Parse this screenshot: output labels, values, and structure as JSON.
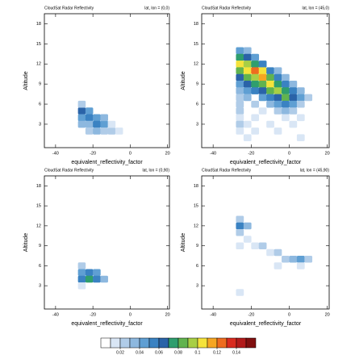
{
  "chart_data": [
    {
      "type": "heatmap",
      "title": "CloudSat Radar Reflectivity",
      "subtitle": "lat, lon = (0,0)",
      "xlabel": "equivalent_reflectivity_factor",
      "ylabel": "Altitude",
      "xlim": [
        -46,
        21
      ],
      "ylim": [
        -0.5,
        19.5
      ],
      "xticks": [
        -40,
        -20,
        0,
        20
      ],
      "yticks": [
        3,
        6,
        9,
        12,
        15,
        18
      ],
      "x": [
        -26,
        -26,
        -26,
        -26,
        -22,
        -22,
        -22,
        -22,
        -18,
        -18,
        -18,
        -14,
        -14,
        -14,
        -10,
        -10,
        -6
      ],
      "y": [
        5,
        4,
        3,
        6,
        5,
        4,
        3,
        2,
        4,
        3,
        2,
        3,
        4,
        2,
        2,
        3,
        2
      ],
      "values": [
        0.06,
        0.04,
        0.03,
        0.02,
        0.04,
        0.05,
        0.03,
        0.02,
        0.04,
        0.05,
        0.03,
        0.04,
        0.03,
        0.02,
        0.02,
        0.015,
        0.015
      ]
    },
    {
      "type": "heatmap",
      "title": "CloudSat Radar Reflectivity",
      "subtitle": "lat, lon = (45,0)",
      "xlabel": "equivalent_reflectivity_factor",
      "ylabel": "Altitude",
      "xlim": [
        -46,
        21
      ],
      "ylim": [
        -0.5,
        19.5
      ],
      "xticks": [
        -40,
        -20,
        0,
        20
      ],
      "yticks": [
        3,
        6,
        9,
        12,
        15,
        18
      ],
      "x": [
        -26,
        -22,
        -26,
        -22,
        -18,
        -26,
        -22,
        -18,
        -14,
        -26,
        -22,
        -18,
        -14,
        -10,
        -6,
        -26,
        -22,
        -18,
        -14,
        -10,
        -6,
        -2,
        -26,
        -22,
        -18,
        -14,
        -10,
        -6,
        -2,
        2,
        -26,
        -22,
        -18,
        -14,
        -10,
        -6,
        -2,
        2,
        6,
        -26,
        -22,
        -14,
        -10,
        -6,
        -2,
        2,
        6,
        10,
        -26,
        -18,
        -10,
        -6,
        -2,
        2,
        6,
        -26,
        -14,
        -6,
        -2,
        2,
        -26,
        -18,
        -2,
        6,
        -26,
        -22,
        -10,
        2,
        -26,
        -18,
        -6,
        -22,
        6
      ],
      "y": [
        14,
        14,
        13,
        13,
        13,
        12,
        12,
        12,
        12,
        11,
        11,
        11,
        11,
        11,
        11,
        10,
        10,
        10,
        10,
        10,
        10,
        10,
        9,
        9,
        9,
        9,
        9,
        9,
        9,
        9,
        8,
        8,
        8,
        8,
        8,
        8,
        8,
        8,
        8,
        7,
        7,
        7,
        7,
        7,
        7,
        7,
        7,
        7,
        6,
        6,
        6,
        6,
        6,
        6,
        6,
        5,
        5,
        5,
        5,
        5,
        4,
        4,
        4,
        4,
        3,
        3,
        3,
        3,
        2,
        2,
        2,
        1,
        1
      ],
      "values": [
        0.04,
        0.03,
        0.07,
        0.06,
        0.04,
        0.1,
        0.09,
        0.07,
        0.05,
        0.08,
        0.1,
        0.12,
        0.1,
        0.05,
        0.03,
        0.06,
        0.08,
        0.09,
        0.11,
        0.08,
        0.05,
        0.03,
        0.04,
        0.06,
        0.07,
        0.08,
        0.1,
        0.07,
        0.05,
        0.03,
        0.03,
        0.04,
        0.05,
        0.06,
        0.08,
        0.09,
        0.07,
        0.05,
        0.03,
        0.02,
        0.03,
        0.04,
        0.05,
        0.06,
        0.08,
        0.06,
        0.04,
        0.02,
        0.02,
        0.02,
        0.03,
        0.04,
        0.05,
        0.04,
        0.02,
        0.02,
        0.015,
        0.02,
        0.03,
        0.02,
        0.015,
        0.015,
        0.015,
        0.015,
        0.02,
        0.015,
        0.015,
        0.015,
        0.015,
        0.015,
        0.015,
        0.015,
        0.015
      ]
    },
    {
      "type": "heatmap",
      "title": "CloudSat Radar Reflectivity",
      "subtitle": "lat, lon = (0,90)",
      "xlabel": "equivalent_reflectivity_factor",
      "ylabel": "Altitude",
      "xlim": [
        -46,
        21
      ],
      "ylim": [
        -0.5,
        19.5
      ],
      "xticks": [
        -40,
        -20,
        0,
        20
      ],
      "yticks": [
        3,
        6,
        9,
        12,
        15,
        18
      ],
      "x": [
        -26,
        -26,
        -26,
        -22,
        -22,
        -18,
        -18,
        -14,
        -26
      ],
      "y": [
        6,
        5,
        4,
        5,
        4,
        5,
        4,
        4,
        3
      ],
      "values": [
        0.02,
        0.04,
        0.05,
        0.05,
        0.07,
        0.04,
        0.05,
        0.03,
        0.015
      ]
    },
    {
      "type": "heatmap",
      "title": "CloudSat Radar Reflectivity",
      "subtitle": "lat, lon = (45,90)",
      "xlabel": "equivalent_reflectivity_factor",
      "ylabel": "Altitude",
      "xlim": [
        -46,
        21
      ],
      "ylim": [
        -0.5,
        19.5
      ],
      "xticks": [
        -40,
        -20,
        0,
        20
      ],
      "yticks": [
        3,
        6,
        9,
        12,
        15,
        18
      ],
      "x": [
        -26,
        -26,
        -22,
        -26,
        -22,
        -18,
        -14,
        -10,
        -6,
        -2,
        2,
        6,
        10,
        6,
        -26,
        -6,
        -26
      ],
      "y": [
        13,
        12,
        12,
        11,
        10,
        9,
        9,
        8,
        8,
        7,
        7,
        7,
        7,
        6,
        9,
        6,
        2
      ],
      "values": [
        0.02,
        0.05,
        0.03,
        0.02,
        0.015,
        0.015,
        0.02,
        0.015,
        0.02,
        0.02,
        0.03,
        0.04,
        0.02,
        0.015,
        0.015,
        0.015,
        0.015
      ]
    }
  ],
  "colorbar": {
    "clim": [
      0,
      0.16
    ],
    "ticks": [
      0.02,
      0.04,
      0.06,
      0.08,
      0.1,
      0.12,
      0.14
    ],
    "colors": [
      "#ffffff",
      "#d9e6f5",
      "#b0cce8",
      "#8db8df",
      "#5f9fd3",
      "#3a82c2",
      "#2a63a8",
      "#2f9e6e",
      "#61b34f",
      "#a8cf45",
      "#f5e33b",
      "#f6a623",
      "#ee6c1f",
      "#d92b1f",
      "#b21a1a",
      "#800f0f"
    ]
  }
}
